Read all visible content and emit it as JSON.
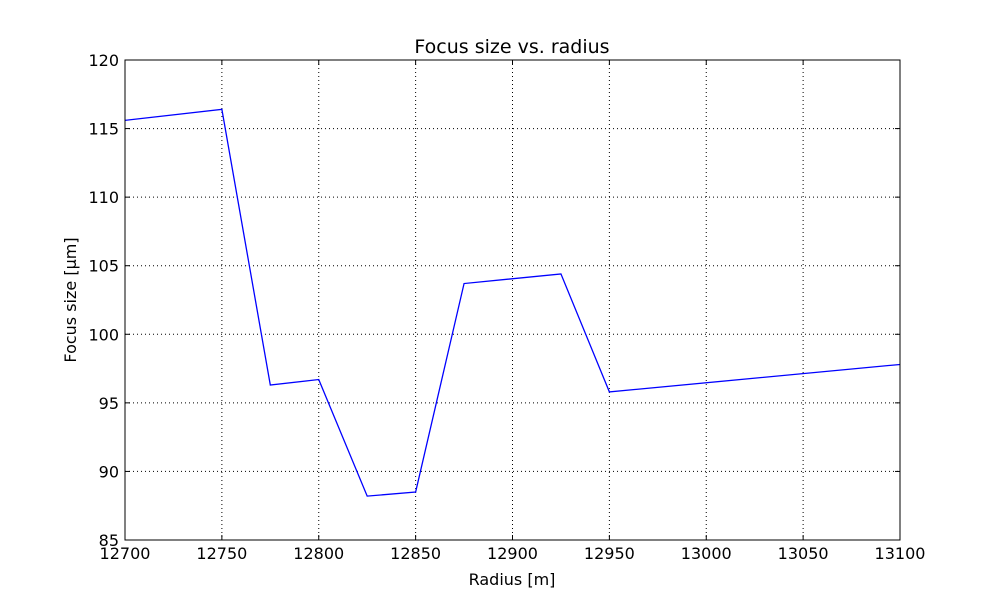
{
  "chart_data": {
    "type": "line",
    "title": "Focus size vs. radius",
    "xlabel": "Radius [m]",
    "ylabel": "Focus size [µm]",
    "xlim": [
      12700,
      13100
    ],
    "ylim": [
      85,
      120
    ],
    "xticks": [
      12700,
      12750,
      12800,
      12850,
      12900,
      12950,
      13000,
      13050,
      13100
    ],
    "yticks": [
      85,
      90,
      95,
      100,
      105,
      110,
      115,
      120
    ],
    "grid": true,
    "series": [
      {
        "color": "#0000ff",
        "x": [
          12700,
          12750,
          12775,
          12800,
          12825,
          12850,
          12875,
          12925,
          12950,
          13100
        ],
        "y": [
          115.6,
          116.4,
          96.3,
          96.7,
          88.2,
          88.5,
          103.7,
          104.4,
          95.8,
          97.8
        ]
      }
    ]
  }
}
